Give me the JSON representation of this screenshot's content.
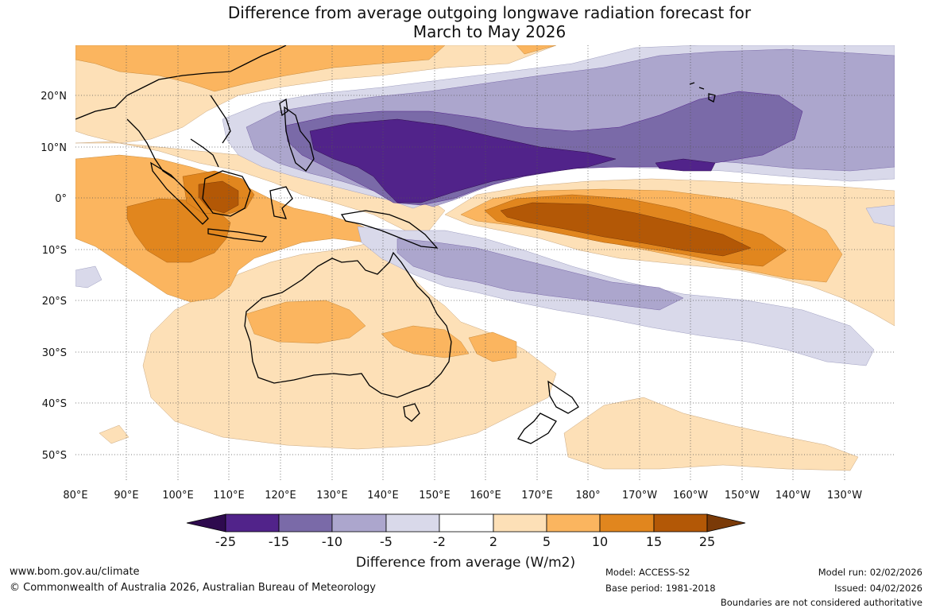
{
  "title": {
    "line1": "Difference from average outgoing longwave radiation forecast for",
    "line2": "March to May 2026"
  },
  "map": {
    "lat_labels": [
      "20°N",
      "10°N",
      "0°",
      "10°S",
      "20°S",
      "30°S",
      "40°S",
      "50°S"
    ],
    "lon_labels": [
      "80°E",
      "90°E",
      "100°E",
      "110°E",
      "120°E",
      "130°E",
      "140°E",
      "150°E",
      "160°E",
      "170°E",
      "180°",
      "170°W",
      "160°W",
      "150°W",
      "140°W",
      "130°W"
    ]
  },
  "colorbar": {
    "title": "Difference from average (W/m2)",
    "tick_labels": [
      "-25",
      "-15",
      "-10",
      "-5",
      "-2",
      "2",
      "5",
      "10",
      "15",
      "25"
    ],
    "colors": {
      "lt_neg25": "#2e0a4e",
      "neg25_neg15": "#51238a",
      "neg15_neg10": "#7a6aa8",
      "neg10_neg5": "#aca6cd",
      "neg5_neg2": "#d9d9ea",
      "neg2_2": "#ffffff",
      "2_5": "#fde0b7",
      "5_10": "#fbb55f",
      "10_15": "#e1861e",
      "15_25": "#b35806",
      "gt_25": "#7a3a08"
    }
  },
  "footer": {
    "website": "www.bom.gov.au/climate",
    "copyright": "© Commonwealth of Australia 2026, Australian Bureau of Meteorology",
    "model": "Model: ACCESS-S2",
    "base_period": "Base period: 1981-2018",
    "model_run": "Model run: 02/02/2026",
    "issued": "Issued: 04/02/2026",
    "disclaimer": "Boundaries are not considered authoritative"
  }
}
